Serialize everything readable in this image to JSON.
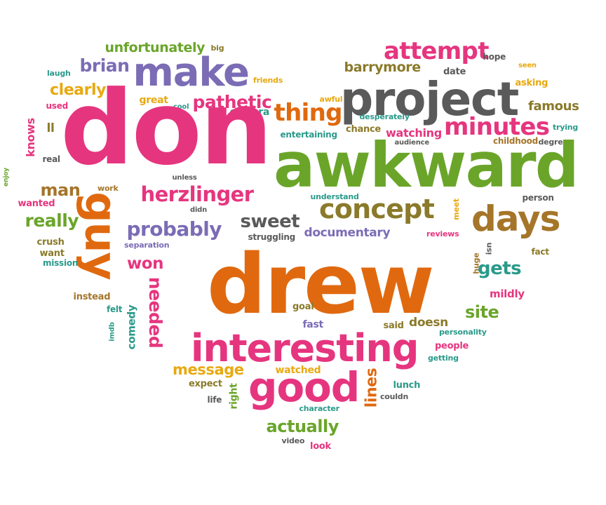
{
  "colors": {
    "pink": "#e6357f",
    "orange": "#e0690f",
    "green": "#6aa52a",
    "gray": "#5a5a5a",
    "purple": "#7b6cb5",
    "brown": "#a5752a",
    "yellow": "#e8a910",
    "teal": "#2a9a8a",
    "lightgreen": "#5fbe48",
    "olive": "#8a7a2a",
    "background": "#ffffff"
  },
  "words": [
    {
      "text": "unfortunately",
      "color": "green"
    },
    {
      "text": "big",
      "color": "olive"
    },
    {
      "text": "attempt",
      "color": "pink"
    },
    {
      "text": "hope",
      "color": "gray"
    },
    {
      "text": "brian",
      "color": "purple"
    },
    {
      "text": "make",
      "color": "purple"
    },
    {
      "text": "laugh",
      "color": "teal"
    },
    {
      "text": "friends",
      "color": "yellow"
    },
    {
      "text": "barrymore",
      "color": "olive"
    },
    {
      "text": "date",
      "color": "gray"
    },
    {
      "text": "seen",
      "color": "yellow"
    },
    {
      "text": "clearly",
      "color": "yellow"
    },
    {
      "text": "project",
      "color": "gray"
    },
    {
      "text": "asking",
      "color": "yellow"
    },
    {
      "text": "used",
      "color": "pink"
    },
    {
      "text": "great",
      "color": "yellow"
    },
    {
      "text": "cool",
      "color": "teal"
    },
    {
      "text": "pathetic",
      "color": "pink"
    },
    {
      "text": "awful",
      "color": "yellow"
    },
    {
      "text": "famous",
      "color": "olive"
    },
    {
      "text": "knows",
      "color": "pink"
    },
    {
      "text": "camera",
      "color": "teal"
    },
    {
      "text": "thing",
      "color": "orange"
    },
    {
      "text": "desperately",
      "color": "teal"
    },
    {
      "text": "ll",
      "color": "olive"
    },
    {
      "text": "don",
      "color": "pink"
    },
    {
      "text": "minutes",
      "color": "pink"
    },
    {
      "text": "trying",
      "color": "teal"
    },
    {
      "text": "entertaining",
      "color": "teal"
    },
    {
      "text": "chance",
      "color": "olive"
    },
    {
      "text": "watching",
      "color": "pink"
    },
    {
      "text": "audience",
      "color": "gray"
    },
    {
      "text": "childhood",
      "color": "brown"
    },
    {
      "text": "degrees",
      "color": "gray"
    },
    {
      "text": "real",
      "color": "gray"
    },
    {
      "text": "awkward",
      "color": "green"
    },
    {
      "text": "enjoy",
      "color": "green"
    },
    {
      "text": "unless",
      "color": "gray"
    },
    {
      "text": "man",
      "color": "brown"
    },
    {
      "text": "work",
      "color": "brown"
    },
    {
      "text": "herzlinger",
      "color": "pink"
    },
    {
      "text": "understand",
      "color": "teal"
    },
    {
      "text": "person",
      "color": "gray"
    },
    {
      "text": "wanted",
      "color": "pink"
    },
    {
      "text": "didn",
      "color": "gray"
    },
    {
      "text": "concept",
      "color": "olive"
    },
    {
      "text": "meet",
      "color": "yellow"
    },
    {
      "text": "days",
      "color": "brown"
    },
    {
      "text": "really",
      "color": "green"
    },
    {
      "text": "guy",
      "color": "orange"
    },
    {
      "text": "sweet",
      "color": "gray"
    },
    {
      "text": "probably",
      "color": "purple"
    },
    {
      "text": "struggling",
      "color": "gray"
    },
    {
      "text": "documentary",
      "color": "purple"
    },
    {
      "text": "reviews",
      "color": "pink"
    },
    {
      "text": "crush",
      "color": "olive"
    },
    {
      "text": "separation",
      "color": "purple"
    },
    {
      "text": "want",
      "color": "olive"
    },
    {
      "text": "isn",
      "color": "gray"
    },
    {
      "text": "fact",
      "color": "olive"
    },
    {
      "text": "mission",
      "color": "teal"
    },
    {
      "text": "won",
      "color": "pink"
    },
    {
      "text": "drew",
      "color": "orange"
    },
    {
      "text": "huge",
      "color": "brown"
    },
    {
      "text": "gets",
      "color": "teal"
    },
    {
      "text": "mildly",
      "color": "pink"
    },
    {
      "text": "instead",
      "color": "brown"
    },
    {
      "text": "needed",
      "color": "pink"
    },
    {
      "text": "felt",
      "color": "teal"
    },
    {
      "text": "goal",
      "color": "olive"
    },
    {
      "text": "site",
      "color": "green"
    },
    {
      "text": "imdb",
      "color": "teal"
    },
    {
      "text": "comedy",
      "color": "teal"
    },
    {
      "text": "fast",
      "color": "purple"
    },
    {
      "text": "said",
      "color": "olive"
    },
    {
      "text": "doesn",
      "color": "olive"
    },
    {
      "text": "personality",
      "color": "teal"
    },
    {
      "text": "interesting",
      "color": "pink"
    },
    {
      "text": "people",
      "color": "pink"
    },
    {
      "text": "getting",
      "color": "teal"
    },
    {
      "text": "message",
      "color": "yellow"
    },
    {
      "text": "watched",
      "color": "yellow"
    },
    {
      "text": "expect",
      "color": "olive"
    },
    {
      "text": "good",
      "color": "pink"
    },
    {
      "text": "lines",
      "color": "orange"
    },
    {
      "text": "lunch",
      "color": "teal"
    },
    {
      "text": "right",
      "color": "green"
    },
    {
      "text": "couldn",
      "color": "gray"
    },
    {
      "text": "life",
      "color": "gray"
    },
    {
      "text": "character",
      "color": "teal"
    },
    {
      "text": "actually",
      "color": "green"
    },
    {
      "text": "video",
      "color": "gray"
    },
    {
      "text": "look",
      "color": "pink"
    }
  ]
}
